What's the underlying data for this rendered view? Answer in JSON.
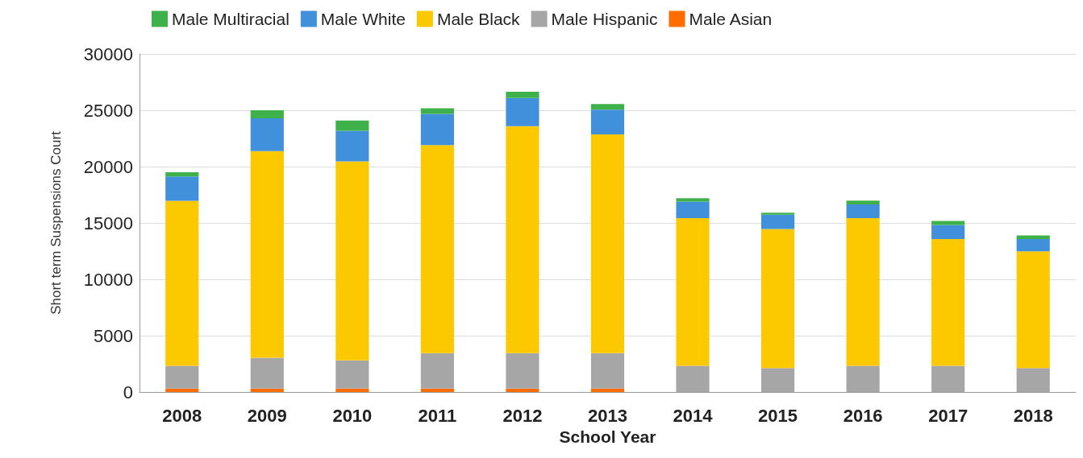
{
  "chart_data": {
    "type": "bar",
    "stacked": true,
    "xlabel": "School Year",
    "ylabel": "Short term Suspensions Court",
    "categories": [
      "2008",
      "2009",
      "2010",
      "2011",
      "2012",
      "2013",
      "2014",
      "2015",
      "2016",
      "2017",
      "2018"
    ],
    "series": [
      {
        "name": "Male Asian",
        "color": "#ff6d00",
        "values": [
          300,
          300,
          300,
          300,
          300,
          300,
          null,
          null,
          null,
          null,
          null
        ]
      },
      {
        "name": "Male Hispanic",
        "color": "#a6a6a6",
        "values": [
          2030,
          2730,
          2510,
          3150,
          3150,
          3150,
          2330,
          2120,
          2330,
          2330,
          2120
        ]
      },
      {
        "name": "Male Black",
        "color": "#fcc800",
        "values": [
          14640,
          18350,
          17660,
          18460,
          20140,
          19400,
          13090,
          12340,
          13090,
          11240,
          10370
        ]
      },
      {
        "name": "Male White",
        "color": "#4190dc",
        "values": [
          2150,
          2910,
          2710,
          2770,
          2500,
          2210,
          1470,
          1280,
          1230,
          1260,
          1080
        ]
      },
      {
        "name": "Male Multiracial",
        "color": "#3fb14b",
        "values": [
          380,
          710,
          910,
          500,
          560,
          500,
          300,
          170,
          340,
          340,
          320
        ]
      }
    ],
    "ylim": [
      0,
      30000
    ],
    "yticks": [
      0,
      5000,
      10000,
      15000,
      20000,
      25000,
      30000
    ],
    "grid": "y",
    "legend": "top"
  }
}
